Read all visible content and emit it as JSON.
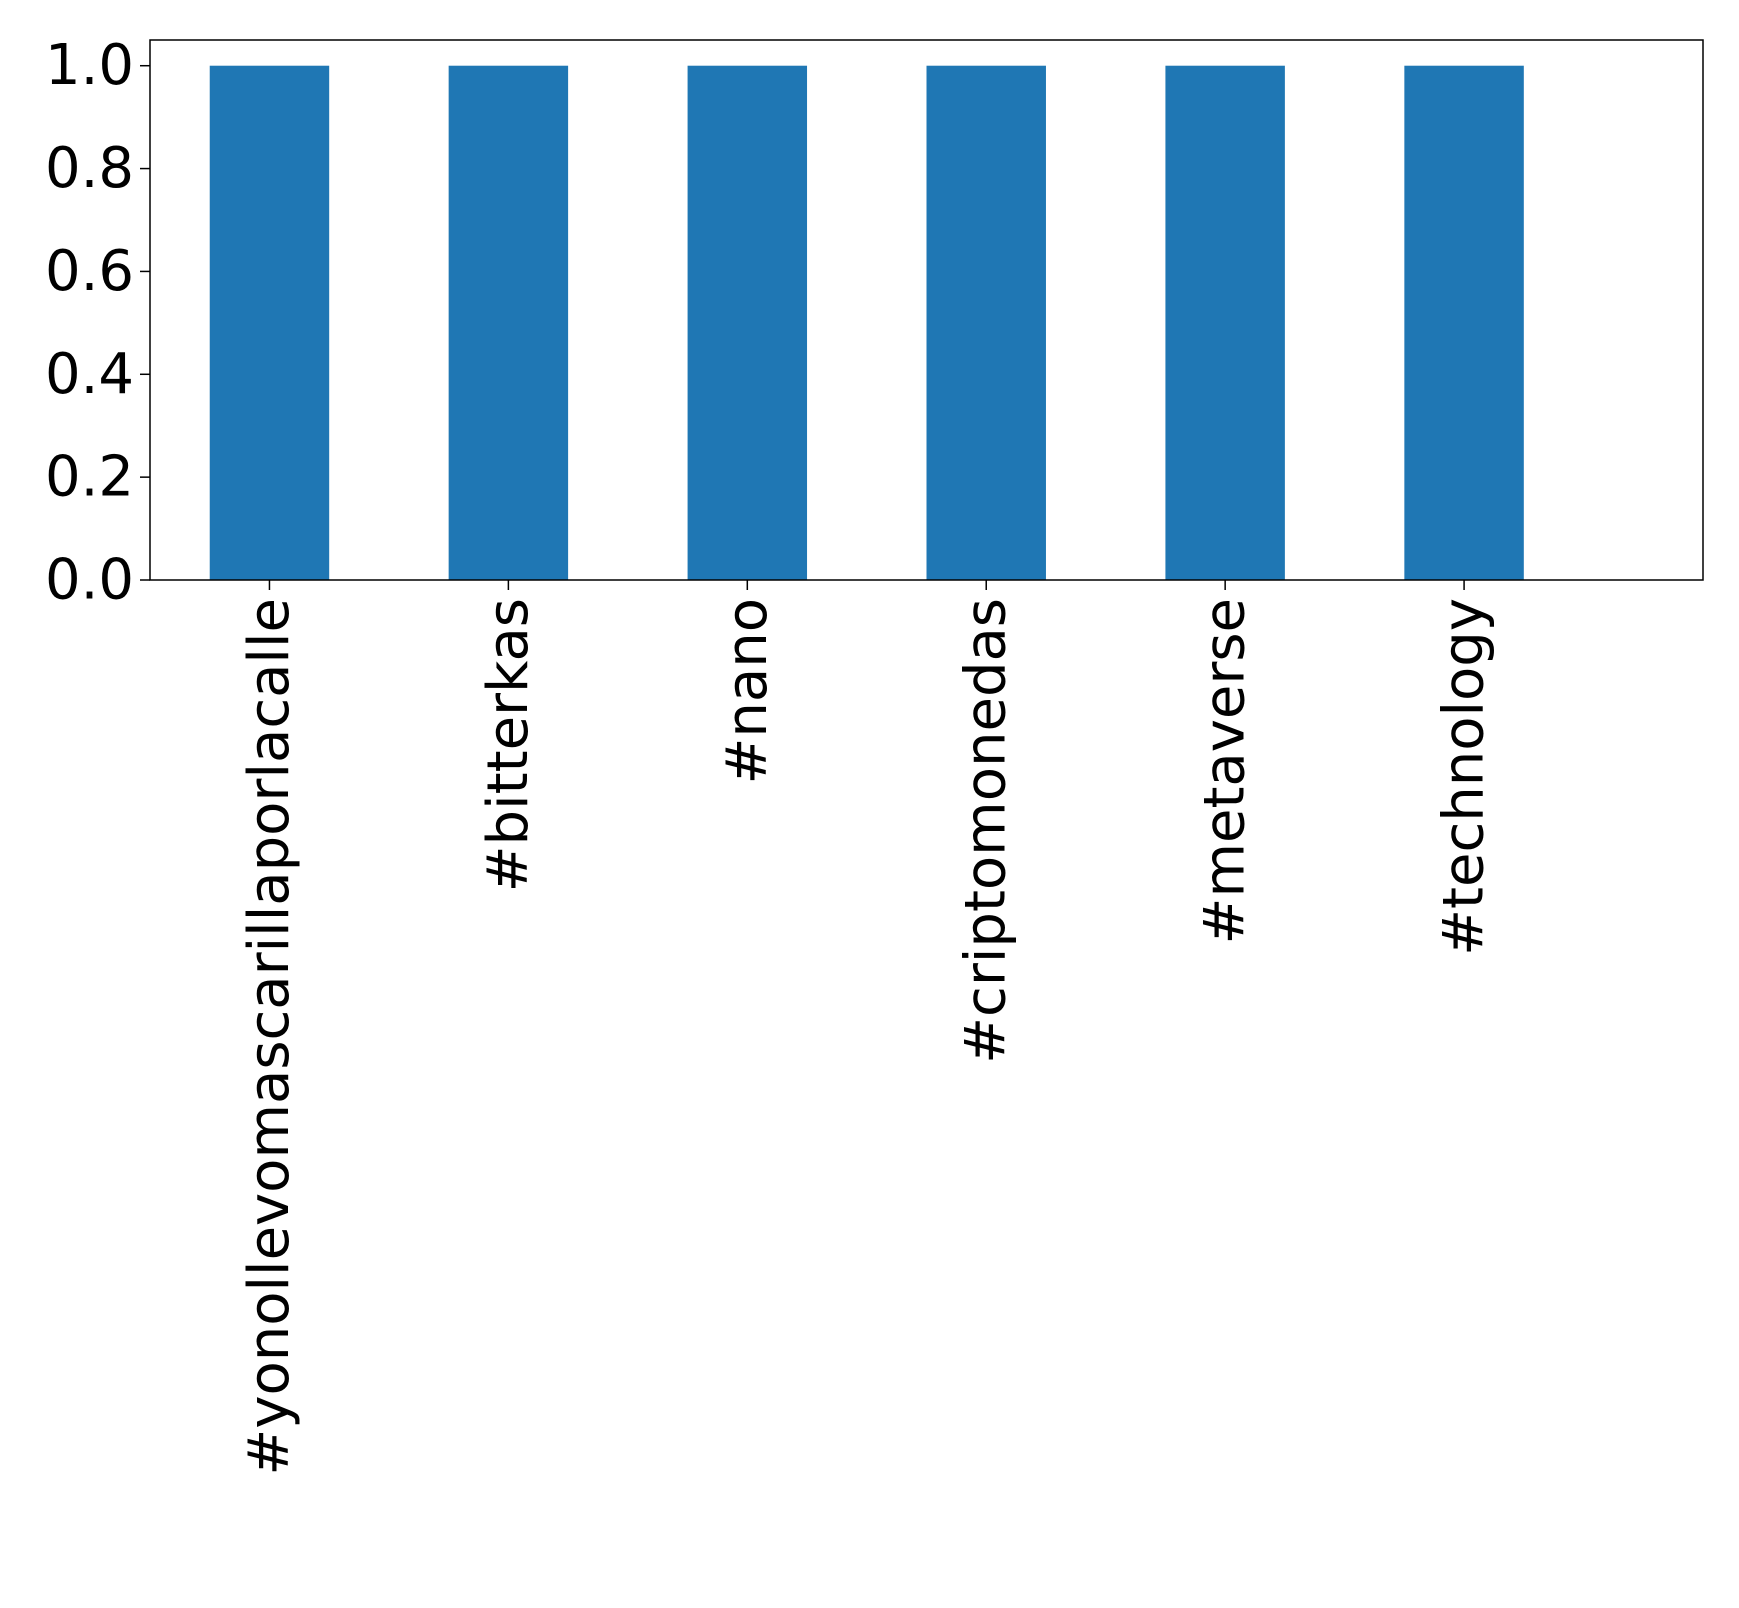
{
  "chart_data": {
    "type": "bar",
    "categories": [
      "#yonollevomascarillaporlacalle",
      "#bitterkas",
      "#nano",
      "#criptomonedas",
      "#metaverse",
      "#technology"
    ],
    "values": [
      1.0,
      1.0,
      1.0,
      1.0,
      1.0,
      1.0
    ],
    "yticks": [
      "0.0",
      "0.2",
      "0.4",
      "0.6",
      "0.8",
      "1.0"
    ],
    "ylim": [
      0,
      1.05
    ],
    "title": "",
    "xlabel": "",
    "ylabel": "",
    "grid": false,
    "bar_color": "#1f77b4",
    "axis_color": "#000000"
  }
}
